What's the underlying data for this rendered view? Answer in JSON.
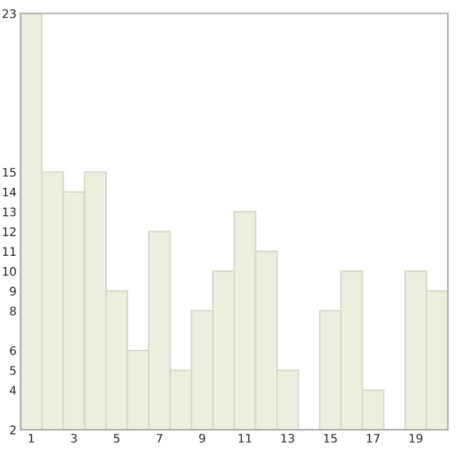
{
  "chart_data": {
    "type": "bar",
    "categories": [
      "1",
      null,
      "3",
      null,
      "5",
      null,
      "7",
      null,
      "9",
      null,
      "11",
      null,
      "13",
      null,
      "15",
      null,
      "17",
      null,
      "19",
      null
    ],
    "values": [
      23,
      15,
      14,
      15,
      9,
      6,
      12,
      5,
      8,
      10,
      13,
      11,
      5,
      2,
      8,
      10,
      4,
      2,
      10,
      9
    ],
    "color": "#eeeedf",
    "ylim": [
      2,
      23
    ],
    "yticks": [
      2,
      4,
      5,
      6,
      8,
      9,
      10,
      11,
      12,
      13,
      14,
      15,
      23
    ],
    "grid": false
  }
}
